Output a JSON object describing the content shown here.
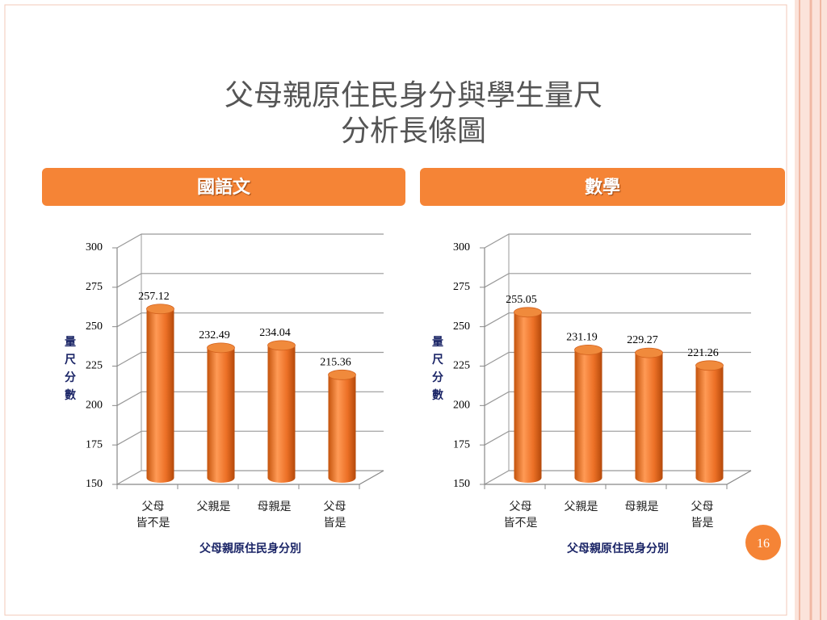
{
  "title": "父母親原住民身分與學生量尺\n分析長條圖",
  "page_number": "16",
  "chart_data": [
    {
      "type": "bar",
      "title": "國語文",
      "categories": [
        "父母\n皆不是",
        "父親是",
        "母親是",
        "父母\n皆是"
      ],
      "values": [
        257.12,
        232.49,
        234.04,
        215.36
      ],
      "color": "#f08a3c",
      "ylim": [
        150,
        300
      ],
      "yticks": [
        150,
        175,
        200,
        225,
        250,
        275,
        300
      ],
      "grid": true,
      "y_label": "量尺分數",
      "x_label": "父母親原住民身分別"
    },
    {
      "type": "bar",
      "title": "數學",
      "categories": [
        "父母\n皆不是",
        "父親是",
        "母親是",
        "父母\n皆是"
      ],
      "values": [
        255.05,
        231.19,
        229.27,
        221.26
      ],
      "color": "#f08a3c",
      "ylim": [
        150,
        300
      ],
      "yticks": [
        150,
        175,
        200,
        225,
        250,
        275,
        300
      ],
      "grid": true,
      "y_label": "量尺分數",
      "x_label": "父母親原住民身分別"
    }
  ]
}
